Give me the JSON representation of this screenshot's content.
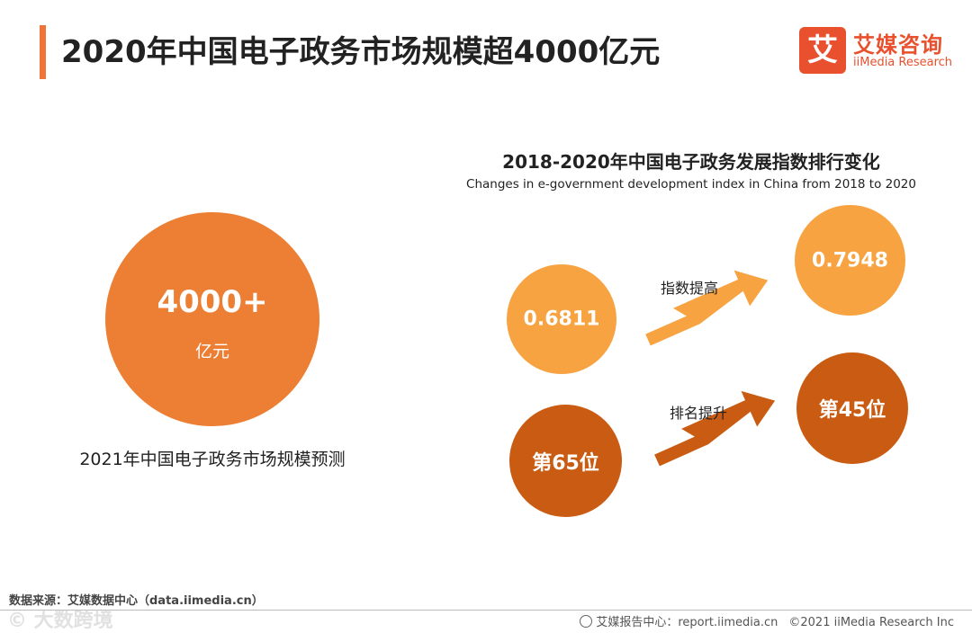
{
  "header": {
    "title": "2020年中国电子政务市场规模超4000亿元",
    "logo_mark": "艾",
    "logo_cn": "艾媒咨询",
    "logo_en": "iiMedia Research"
  },
  "left_panel": {
    "value": "4000+",
    "unit": "亿元",
    "caption": "2021年中国电子政务市场规模预测"
  },
  "chart_data": {
    "type": "bubble-comparison",
    "title": "2018-2020年中国电子政务发展指数排行变化",
    "subtitle": "Changes in e-government development index in China from 2018 to 2020",
    "series": [
      {
        "label_change": "指数提高",
        "from": {
          "year": 2018,
          "value": 0.6811,
          "display": "0.6811"
        },
        "to": {
          "year": 2020,
          "value": 0.7948,
          "display": "0.7948"
        },
        "color": "#f7a342"
      },
      {
        "label_change": "排名提升",
        "from": {
          "year": 2018,
          "value": 65,
          "display": "第65位"
        },
        "to": {
          "year": 2020,
          "value": 45,
          "display": "第45位"
        },
        "color": "#c95c12"
      }
    ]
  },
  "colors": {
    "accent": "#ee7537",
    "big_circle": "#ec7f34",
    "light": "#f7a342",
    "dark": "#c95c12",
    "brand": "#e8502e"
  },
  "footer": {
    "source": "数据来源：艾媒数据中心（data.iimedia.cn）",
    "watermark": "© 大数跨境",
    "center_label": "艾媒报告中心：report.iimedia.cn",
    "copyright": "©2021 iiMedia Research Inc"
  }
}
